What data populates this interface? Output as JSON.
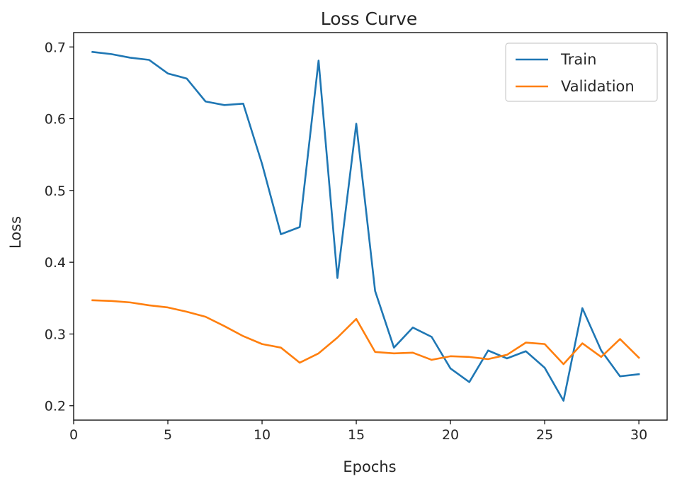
{
  "chart_data": {
    "type": "line",
    "title": "Loss Curve",
    "xlabel": "Epochs",
    "ylabel": "Loss",
    "xlim": [
      0,
      31.5
    ],
    "ylim": [
      0.18,
      0.72
    ],
    "xticks": [
      0,
      5,
      10,
      15,
      20,
      25,
      30
    ],
    "yticks": [
      0.2,
      0.3,
      0.4,
      0.5,
      0.6,
      0.7
    ],
    "grid": false,
    "legend_position": "top-right",
    "x": [
      1,
      2,
      3,
      4,
      5,
      6,
      7,
      8,
      9,
      10,
      11,
      12,
      13,
      14,
      15,
      16,
      17,
      18,
      19,
      20,
      21,
      22,
      23,
      24,
      25,
      26,
      27,
      28,
      29,
      30
    ],
    "series": [
      {
        "name": "Train",
        "color": "#1f77b4",
        "values": [
          0.693,
          0.69,
          0.685,
          0.682,
          0.663,
          0.656,
          0.624,
          0.619,
          0.621,
          0.537,
          0.439,
          0.449,
          0.681,
          0.378,
          0.593,
          0.36,
          0.281,
          0.309,
          0.296,
          0.252,
          0.233,
          0.277,
          0.266,
          0.276,
          0.253,
          0.207,
          0.336,
          0.277,
          0.241,
          0.244
        ]
      },
      {
        "name": "Validation",
        "color": "#ff7f0e",
        "values": [
          0.347,
          0.346,
          0.344,
          0.34,
          0.337,
          0.331,
          0.324,
          0.311,
          0.297,
          0.286,
          0.281,
          0.26,
          0.273,
          0.295,
          0.321,
          0.275,
          0.273,
          0.274,
          0.264,
          0.269,
          0.268,
          0.265,
          0.271,
          0.288,
          0.286,
          0.258,
          0.287,
          0.268,
          0.293,
          0.267
        ]
      }
    ]
  }
}
